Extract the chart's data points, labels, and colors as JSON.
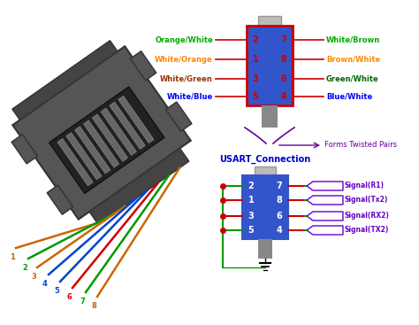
{
  "bg_color": "#ffffff",
  "connector_blue": "#3355cc",
  "connector_border_red": "#cc0000",
  "connector_gray_cap": "#bbbbbb",
  "gray_stem": "#888888",
  "pin_color": "#cc0000",
  "top_left_labels": [
    "Orange/White",
    "White/Orange",
    "White/Green",
    "White/Blue"
  ],
  "top_left_colors": [
    "#00aa00",
    "#ff8800",
    "#993300",
    "#0000ff"
  ],
  "top_right_labels": [
    "White/Brown",
    "Brown/White",
    "Green/White",
    "Blue/White"
  ],
  "top_right_colors": [
    "#00aa00",
    "#ff8800",
    "#006600",
    "#0000ff"
  ],
  "top_pins_left": [
    "2",
    "1",
    "3",
    "5"
  ],
  "top_pins_right": [
    "7",
    "8",
    "6",
    "4"
  ],
  "bottom_pins_left": [
    "2",
    "1",
    "3",
    "5"
  ],
  "bottom_pins_right": [
    "7",
    "8",
    "6",
    "4"
  ],
  "bottom_right_labels": [
    "Signal(R1)",
    "Signal(Tx2)",
    "Signal(RX2)",
    "Signal(TX2)"
  ],
  "signal_color": "#6600cc",
  "usart_label": "USART_Connection",
  "usart_color": "#0000cc",
  "twisted_label": "Forms Twisted Pairs",
  "twisted_color": "#660099",
  "wire_left_colors": [
    "#009900",
    "#cc0000",
    "#cc0000",
    "#009900"
  ],
  "wire_right_color": "#009900",
  "dot_color": "#cc0000",
  "body_color": "#555555",
  "body_dark": "#333333",
  "port_color": "#111111",
  "pin_contact_color": "#666666",
  "wire_colors": [
    "#cc6600",
    "#009900",
    "#cc6600",
    "#0044cc",
    "#0044cc",
    "#cc0000",
    "#009900",
    "#cc6600"
  ],
  "wire_numbers": [
    "1",
    "2",
    "3",
    "4",
    "5",
    "6",
    "7",
    "8"
  ],
  "wire_number_colors": [
    "#cc6600",
    "#009900",
    "#cc6600",
    "#0044cc",
    "#0044cc",
    "#cc0000",
    "#009900",
    "#cc6600"
  ]
}
